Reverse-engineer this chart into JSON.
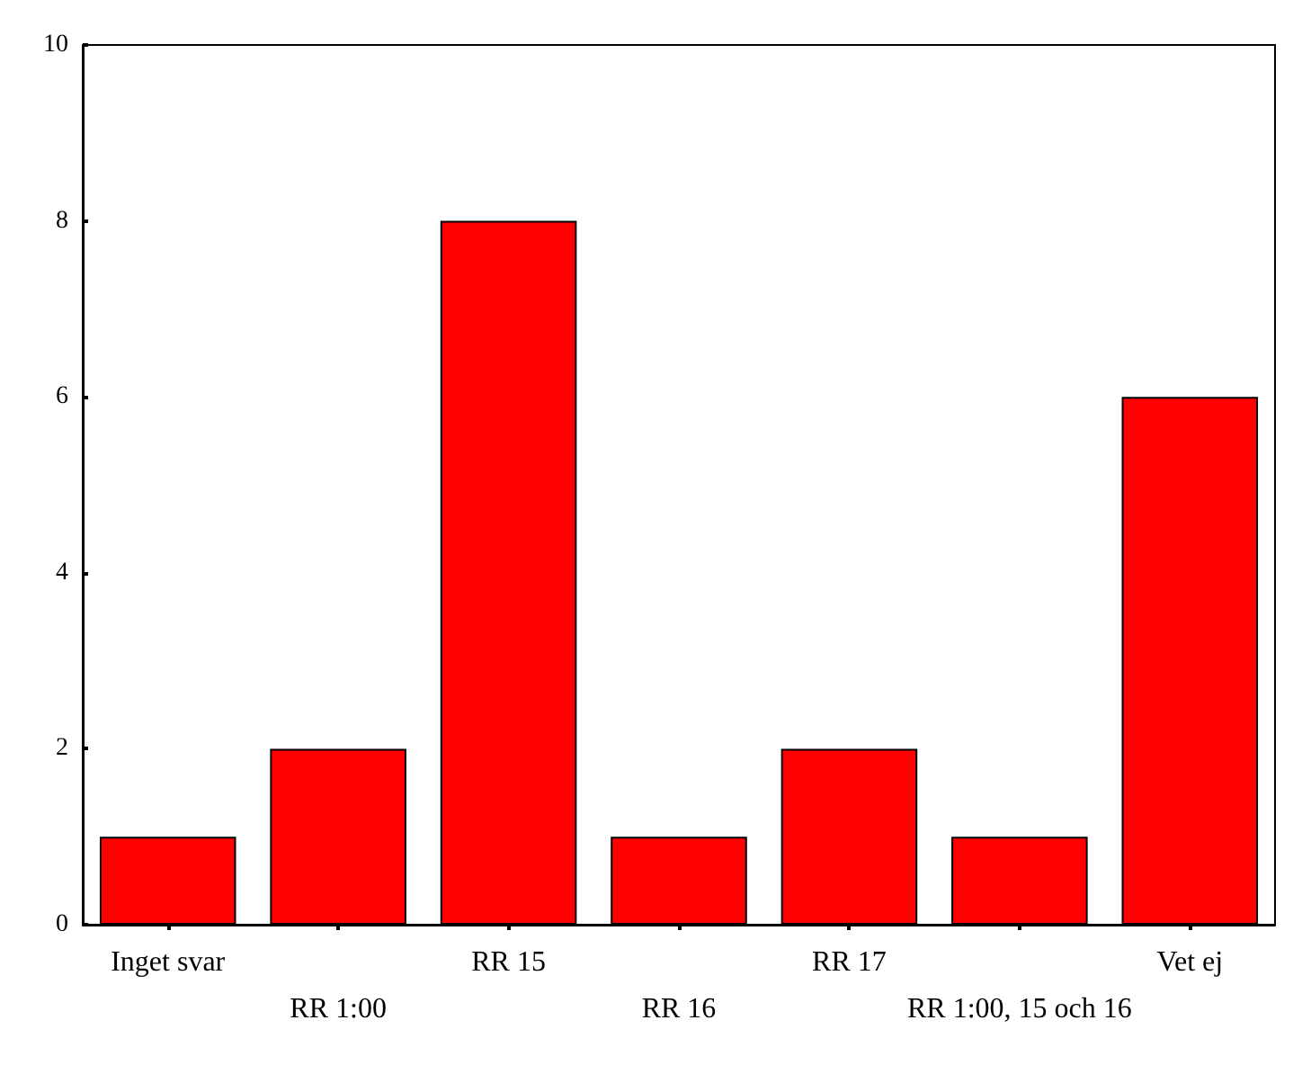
{
  "chart_data": {
    "type": "bar",
    "categories": [
      "Inget svar",
      "RR 1:00",
      "RR 15",
      "RR 16",
      "RR 17",
      "RR 1:00, 15 och 16",
      "Vet ej"
    ],
    "values": [
      1,
      2,
      8,
      1,
      2,
      1,
      6
    ],
    "color": "#ff0000",
    "ylim": [
      0,
      10
    ],
    "yticks": [
      0,
      2,
      4,
      6,
      8,
      10
    ],
    "grid": false
  }
}
